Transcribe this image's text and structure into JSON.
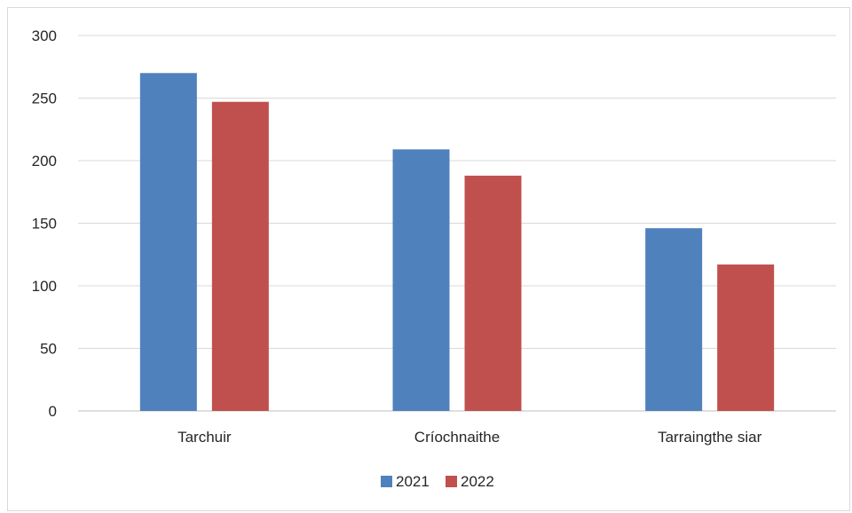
{
  "chart_data": {
    "type": "bar",
    "categories": [
      "Tarchuir",
      "Críochnaithe",
      "Tarraingthe siar"
    ],
    "series": [
      {
        "name": "2021",
        "values": [
          270,
          209,
          146
        ],
        "color": "#4f81bd"
      },
      {
        "name": "2022",
        "values": [
          247,
          188,
          117
        ],
        "color": "#c0504d"
      }
    ],
    "ylim": [
      0,
      300
    ],
    "yticks": [
      0,
      50,
      100,
      150,
      200,
      250,
      300
    ],
    "grid": true,
    "legend": "bottom-center",
    "title": "",
    "xlabel": "",
    "ylabel": ""
  }
}
